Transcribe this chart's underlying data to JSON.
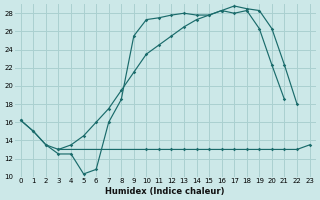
{
  "xlabel": "Humidex (Indice chaleur)",
  "bg_color": "#cce8e8",
  "grid_color": "#aad0d0",
  "line_color": "#1a6b6b",
  "xlim": [
    -0.5,
    23.5
  ],
  "ylim": [
    10,
    29
  ],
  "xticks": [
    0,
    1,
    2,
    3,
    4,
    5,
    6,
    7,
    8,
    9,
    10,
    11,
    12,
    13,
    14,
    15,
    16,
    17,
    18,
    19,
    20,
    21,
    22,
    23
  ],
  "yticks": [
    10,
    12,
    14,
    16,
    18,
    20,
    22,
    24,
    26,
    28
  ],
  "curves": [
    {
      "x": [
        0,
        1,
        2,
        3,
        4,
        5,
        6,
        7,
        8,
        9,
        10,
        11,
        12,
        13,
        14,
        15,
        16,
        17,
        18,
        19,
        20,
        21
      ],
      "y": [
        16.2,
        15.0,
        13.5,
        12.5,
        12.5,
        10.3,
        10.8,
        16.0,
        18.5,
        25.5,
        27.3,
        27.5,
        27.8,
        28.0,
        27.8,
        27.8,
        28.3,
        28.0,
        28.3,
        26.3,
        22.3,
        18.5
      ]
    },
    {
      "x": [
        0,
        1,
        2,
        3,
        10,
        11,
        12,
        13,
        14,
        15,
        16,
        17,
        18,
        19,
        20,
        21,
        22,
        23
      ],
      "y": [
        16.2,
        15.0,
        13.5,
        13.0,
        13.0,
        13.0,
        13.0,
        13.0,
        13.0,
        13.0,
        13.0,
        13.0,
        13.0,
        13.0,
        13.0,
        13.0,
        13.0,
        13.5
      ]
    },
    {
      "x": [
        3,
        4,
        5,
        6,
        7,
        8,
        9,
        10,
        11,
        12,
        13,
        14,
        15,
        16,
        17,
        18,
        19,
        20,
        21,
        22
      ],
      "y": [
        13.0,
        13.5,
        14.5,
        16.0,
        17.5,
        19.5,
        21.5,
        23.5,
        24.5,
        25.5,
        26.5,
        27.3,
        27.8,
        28.3,
        28.8,
        28.5,
        28.3,
        26.3,
        22.3,
        18.0
      ]
    }
  ]
}
